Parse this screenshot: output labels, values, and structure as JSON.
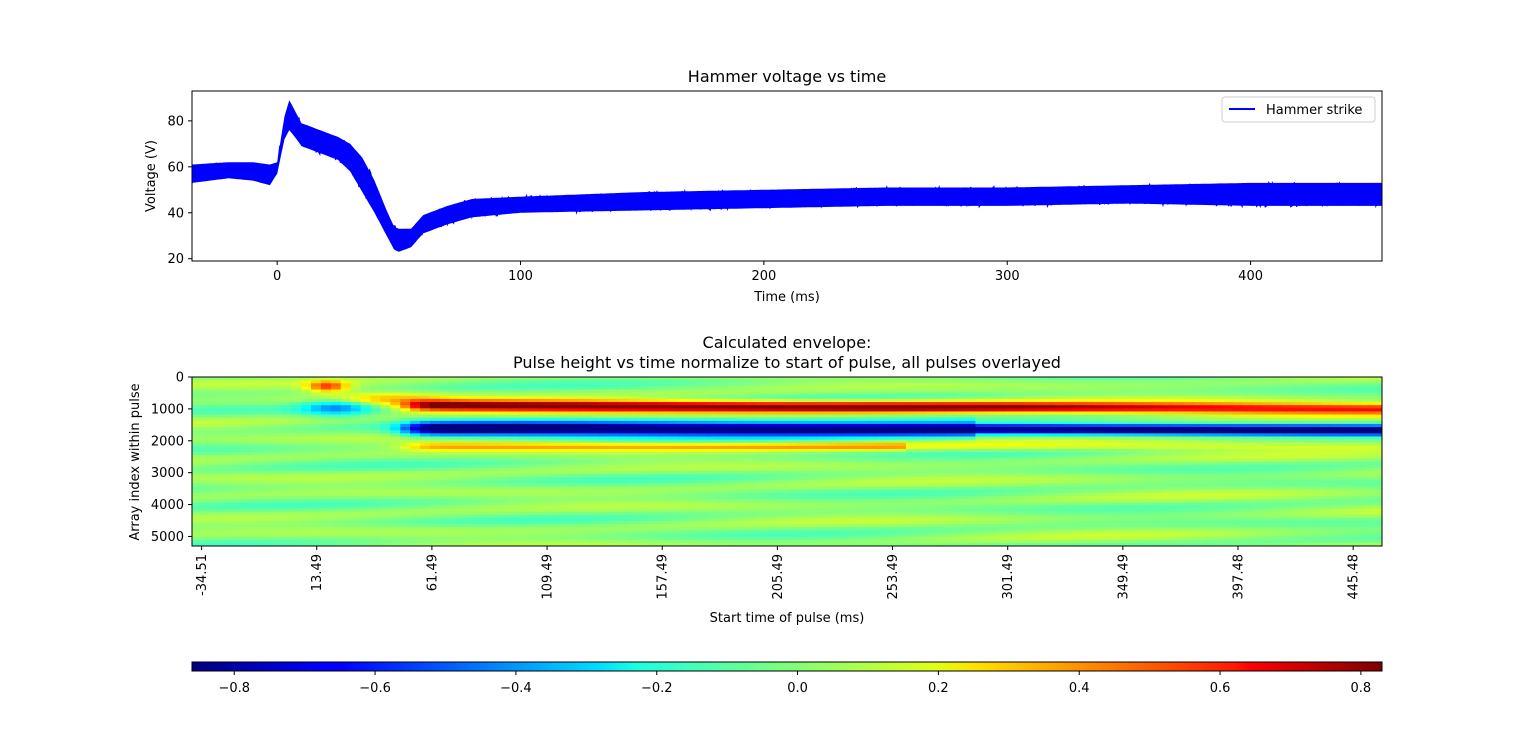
{
  "chart_data": [
    {
      "type": "line",
      "title": "Hammer voltage vs time",
      "xlabel": "Time (ms)",
      "ylabel": "Voltage (V)",
      "xlim": [
        -35,
        454
      ],
      "ylim": [
        19,
        93
      ],
      "xticks": [
        0,
        100,
        200,
        300,
        400
      ],
      "yticks": [
        20,
        40,
        60,
        80
      ],
      "legend": {
        "position": "top-right",
        "entries": [
          "Hammer strike"
        ]
      },
      "colors": {
        "series": "#0000ff"
      },
      "series": [
        {
          "name": "Hammer strike",
          "x": [
            -35,
            -20,
            -10,
            -3,
            0,
            3,
            5,
            8,
            10,
            15,
            20,
            25,
            30,
            35,
            40,
            45,
            48,
            50,
            55,
            60,
            70,
            80,
            100,
            150,
            200,
            250,
            300,
            350,
            400,
            454
          ],
          "upper": [
            61,
            62,
            62,
            61,
            62,
            82,
            89,
            83,
            79,
            77,
            75,
            73,
            70,
            64,
            54,
            41,
            34,
            33,
            33,
            39,
            43,
            46,
            47,
            49,
            50,
            51,
            51,
            52,
            53,
            53
          ],
          "lower": [
            53,
            55,
            54,
            52,
            57,
            72,
            76,
            72,
            69,
            67,
            65,
            63,
            58,
            49,
            40,
            30,
            24,
            23,
            25,
            31,
            35,
            38,
            40,
            41,
            42,
            43,
            43,
            44,
            43,
            43
          ]
        }
      ]
    },
    {
      "type": "heatmap",
      "title_lines": [
        "Calculated envelope:",
        "Pulse height vs time normalize to start of pulse, all pulses overlayed"
      ],
      "xlabel": "Start time of pulse (ms)",
      "ylabel": "Array index within pulse",
      "xlim": [
        -38.5,
        457.5
      ],
      "ylim": [
        5300,
        0
      ],
      "xticks": [
        "-34.51",
        "13.49",
        "61.49",
        "109.49",
        "157.49",
        "205.49",
        "253.49",
        "301.49",
        "349.49",
        "397.48",
        "445.48"
      ],
      "yticks": [
        0,
        1000,
        2000,
        3000,
        4000,
        5000
      ],
      "colormap": "jet",
      "colorbar": {
        "min": -0.86,
        "max": 0.83,
        "ticks": [
          "−0.8",
          "−0.6",
          "−0.4",
          "−0.2",
          "0.0",
          "0.2",
          "0.4",
          "0.6",
          "0.8"
        ]
      }
    }
  ]
}
